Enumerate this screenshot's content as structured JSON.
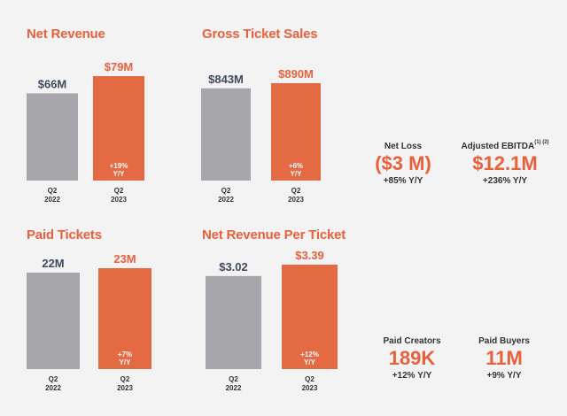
{
  "colors": {
    "prior": "#a7a6ab",
    "current": "#e46a43",
    "accent": "#e8603c"
  },
  "chart_data": [
    {
      "type": "bar",
      "title": "Net Revenue",
      "categories": [
        "Q2\n2022",
        "Q2\n2023"
      ],
      "values": [
        66,
        79
      ],
      "value_labels": [
        "$66M",
        "$79M"
      ],
      "yoy_label": [
        "+19%",
        "Y/Y"
      ],
      "ylim": [
        0,
        79
      ]
    },
    {
      "type": "bar",
      "title": "Gross Ticket Sales",
      "categories": [
        "Q2\n2022",
        "Q2\n2023"
      ],
      "values": [
        843,
        890
      ],
      "value_labels": [
        "$843M",
        "$890M"
      ],
      "yoy_label": [
        "+6%",
        "Y/Y"
      ],
      "ylim": [
        0,
        890
      ]
    },
    {
      "type": "bar",
      "title": "Paid Tickets",
      "categories": [
        "Q2\n2022",
        "Q2\n2023"
      ],
      "values": [
        22,
        23
      ],
      "value_labels": [
        "22M",
        "23M"
      ],
      "yoy_label": [
        "+7%",
        "Y/Y"
      ],
      "ylim": [
        0,
        23
      ]
    },
    {
      "type": "bar",
      "title": "Net Revenue Per Ticket",
      "categories": [
        "Q2\n2022",
        "Q2\n2023"
      ],
      "values": [
        3.02,
        3.39
      ],
      "value_labels": [
        "$3.02",
        "$3.39"
      ],
      "yoy_label": [
        "+12%",
        "Y/Y"
      ],
      "ylim": [
        0,
        3.39
      ]
    }
  ],
  "metrics": {
    "net_loss": {
      "label": "Net Loss",
      "value": "($3 M)",
      "change": "+85% Y/Y"
    },
    "adjusted_ebitda": {
      "label": "Adjusted EBITDA",
      "footnote": "(1) (2)",
      "value": "$12.1M",
      "change": "+236% Y/Y"
    },
    "paid_creators": {
      "label": "Paid Creators",
      "value": "189K",
      "change": "+12% Y/Y"
    },
    "paid_buyers": {
      "label": "Paid Buyers",
      "value": "11M",
      "change": "+9% Y/Y"
    }
  }
}
